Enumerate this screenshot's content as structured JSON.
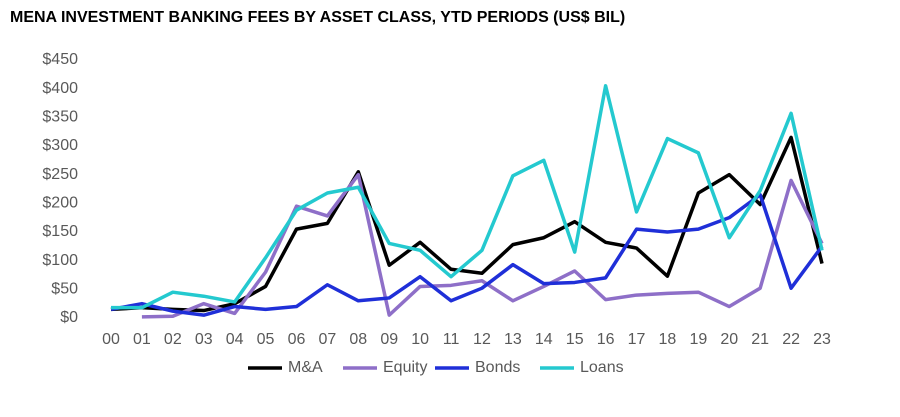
{
  "chart_data": {
    "type": "line",
    "title": "MENA INVESTMENT BANKING FEES BY ASSET CLASS, YTD PERIODS (US$ BIL)",
    "categories": [
      "00",
      "01",
      "02",
      "03",
      "04",
      "05",
      "06",
      "07",
      "08",
      "09",
      "10",
      "11",
      "12",
      "13",
      "14",
      "15",
      "16",
      "17",
      "18",
      "19",
      "20",
      "21",
      "22",
      "23"
    ],
    "series": [
      {
        "name": "M&A",
        "color": "#000000",
        "values": [
          15,
          18,
          15,
          13,
          25,
          55,
          155,
          165,
          255,
          92,
          132,
          85,
          78,
          128,
          140,
          168,
          132,
          122,
          73,
          218,
          250,
          198,
          315,
          95
        ]
      },
      {
        "name": "Equity",
        "color": "#8e6fc8",
        "values": [
          null,
          2,
          3,
          25,
          8,
          80,
          195,
          178,
          250,
          5,
          55,
          57,
          65,
          30,
          55,
          82,
          32,
          40,
          43,
          45,
          20,
          52,
          240,
          130
        ]
      },
      {
        "name": "Bonds",
        "color": "#1f2fd8",
        "values": [
          15,
          25,
          12,
          5,
          20,
          15,
          20,
          58,
          30,
          35,
          72,
          30,
          52,
          93,
          60,
          62,
          70,
          155,
          150,
          155,
          175,
          215,
          52,
          125
        ]
      },
      {
        "name": "Loans",
        "color": "#24c9cf",
        "values": [
          18,
          18,
          45,
          38,
          28,
          105,
          188,
          218,
          228,
          130,
          118,
          72,
          118,
          248,
          275,
          115,
          405,
          185,
          313,
          288,
          140,
          222,
          357,
          118
        ]
      }
    ],
    "ylim": [
      0,
      450
    ],
    "yticks": [
      {
        "value": 0,
        "label": "$0"
      },
      {
        "value": 50,
        "label": "$50"
      },
      {
        "value": 100,
        "label": "$100"
      },
      {
        "value": 150,
        "label": "$150"
      },
      {
        "value": 200,
        "label": "$200"
      },
      {
        "value": 250,
        "label": "$250"
      },
      {
        "value": 300,
        "label": "$300"
      },
      {
        "value": 350,
        "label": "$350"
      },
      {
        "value": 400,
        "label": "$400"
      },
      {
        "value": 450,
        "label": "$450"
      }
    ],
    "grid": false,
    "legend": "bottom"
  }
}
